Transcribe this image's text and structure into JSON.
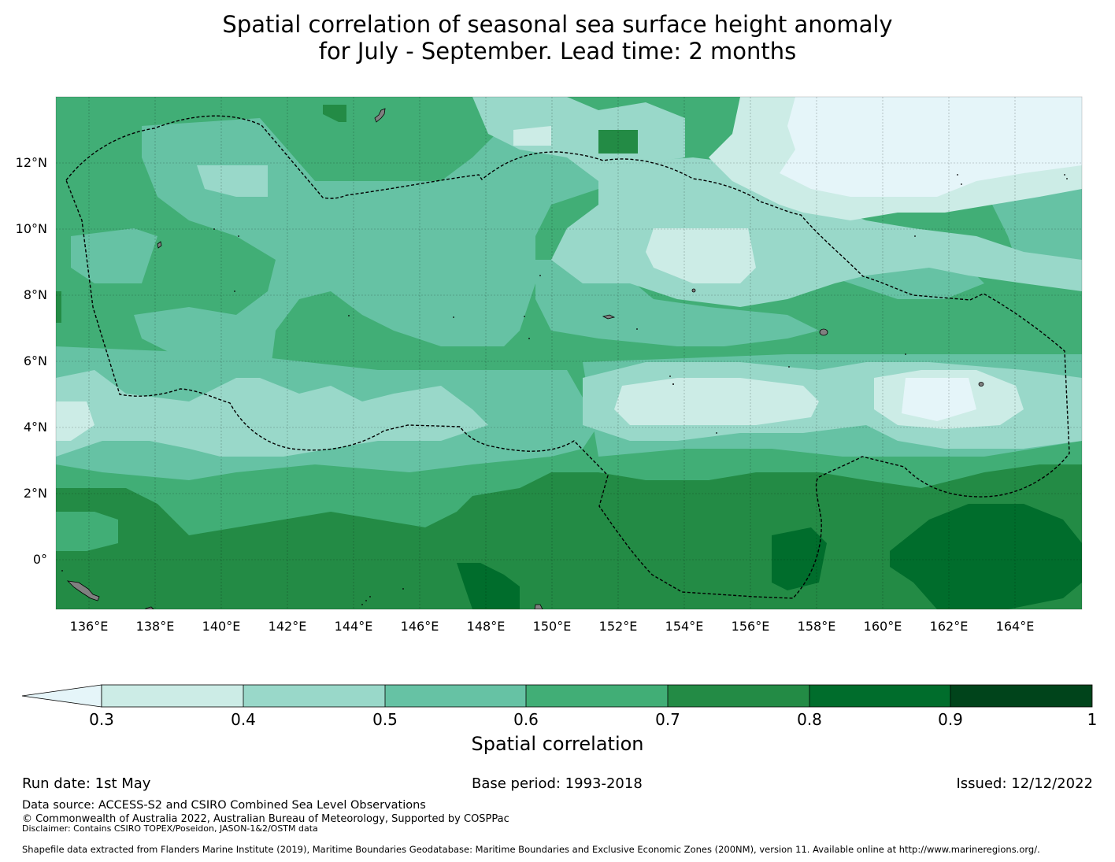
{
  "title": {
    "line1": "Spatial correlation of seasonal sea surface height anomaly",
    "line2": "for July - September. Lead time: 2 months"
  },
  "map": {
    "lat_labels": [
      "12°N",
      "10°N",
      "8°N",
      "6°N",
      "4°N",
      "2°N",
      "0°"
    ],
    "lon_labels": [
      "136°E",
      "138°E",
      "140°E",
      "142°E",
      "144°E",
      "146°E",
      "148°E",
      "150°E",
      "152°E",
      "154°E",
      "156°E",
      "158°E",
      "160°E",
      "162°E",
      "164°E"
    ],
    "extent": {
      "lon": [
        135.0,
        166.0
      ],
      "lat": [
        -1.5,
        14.0
      ]
    },
    "land_color": "#808080",
    "eez_line_color": "#000000"
  },
  "colorbar": {
    "ticks": [
      "0.3",
      "0.4",
      "0.5",
      "0.6",
      "0.7",
      "0.8",
      "0.9",
      "1"
    ],
    "colors": [
      "#e5f5f9",
      "#ccece6",
      "#99d8c9",
      "#66c2a4",
      "#41ae76",
      "#238b45",
      "#006d2c",
      "#00441b"
    ],
    "label": "Spatial correlation"
  },
  "footer": {
    "run_date": "Run date: 1st May",
    "base_period": "Base period: 1993-2018",
    "issued": "Issued: 12/12/2022",
    "data_source": "Data source: ACCESS-S2 and CSIRO Combined Sea Level Observations",
    "copyright": "© Commonwealth of Australia 2022, Australian Bureau of Meteorology, Supported by COSPPac",
    "disclaimer": "Disclaimer: Contains CSIRO TOPEX/Poseidon, JASON-1&2/OSTM data",
    "shapefile": "Shapefile data extracted from Flanders Marine Institute (2019), Maritime Boundaries Geodatabase: Maritime Boundaries and Exclusive Economic Zones (200NM), version 11. Available online at http://www.marineregions.org/."
  }
}
